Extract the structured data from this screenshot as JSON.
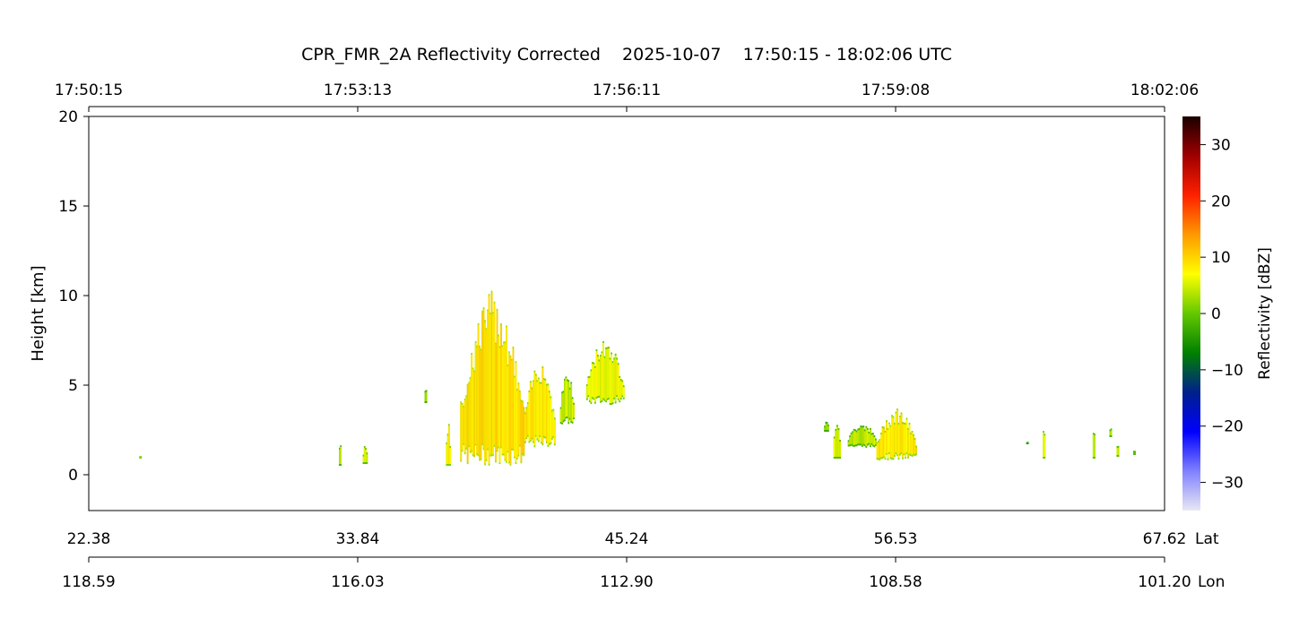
{
  "chart_data": {
    "type": "heatmap",
    "title": "CPR_FMR_2A Reflectivity Corrected    2025-10-07    17:50:15 - 18:02:06 UTC",
    "ylabel": "Height [km]",
    "ylim": [
      -2,
      20
    ],
    "yticks": [
      0,
      5,
      10,
      15,
      20
    ],
    "top_axis_time_ticks": [
      "17:50:15",
      "17:53:13",
      "17:56:11",
      "17:59:08",
      "18:02:06"
    ],
    "lat_ticks": [
      "22.38",
      "33.84",
      "45.24",
      "56.53",
      "67.62"
    ],
    "lat_label": "Lat",
    "lon_ticks": [
      "118.59",
      "116.03",
      "112.90",
      "108.58",
      "101.20"
    ],
    "lon_label": "Lon",
    "grid": false,
    "colorbar": {
      "label": "Reflectivity [dBZ]",
      "range": [
        -35,
        35
      ],
      "ticks": [
        30,
        20,
        10,
        0,
        -10,
        -20,
        -30
      ],
      "colors": [
        "#e8e8f4",
        "#8080ff",
        "#0000ff",
        "#00208c",
        "#008000",
        "#64c800",
        "#ffff00",
        "#ff9900",
        "#ff2000",
        "#a00000",
        "#1a0000"
      ]
    },
    "echo_regions": [
      {
        "lat_range": [
          24.5,
          24.6
        ],
        "height_range": [
          0.9,
          1.1
        ],
        "dbz": 8
      },
      {
        "lat_range": [
          32.9,
          33.0
        ],
        "height_range": [
          0.5,
          2.2
        ],
        "dbz": 5
      },
      {
        "lat_range": [
          33.9,
          34.1
        ],
        "height_range": [
          0.6,
          1.8
        ],
        "dbz": 6
      },
      {
        "lat_range": [
          36.5,
          36.6
        ],
        "height_range": [
          4.0,
          5.0
        ],
        "dbz": 4
      },
      {
        "lat_range": [
          37.4,
          37.6
        ],
        "height_range": [
          0.5,
          3.0
        ],
        "dbz": 8
      },
      {
        "lat_range": [
          38.0,
          40.7
        ],
        "height_range": [
          0.5,
          10.3
        ],
        "dbz": 10
      },
      {
        "lat_range": [
          40.7,
          42.0
        ],
        "height_range": [
          1.5,
          6.7
        ],
        "dbz": 9
      },
      {
        "lat_range": [
          42.2,
          42.8
        ],
        "height_range": [
          2.8,
          5.9
        ],
        "dbz": 5
      },
      {
        "lat_range": [
          43.3,
          44.9
        ],
        "height_range": [
          3.9,
          7.7
        ],
        "dbz": 7
      },
      {
        "lat_range": [
          53.3,
          53.5
        ],
        "height_range": [
          2.4,
          3.2
        ],
        "dbz": 4
      },
      {
        "lat_range": [
          53.7,
          54.0
        ],
        "height_range": [
          0.9,
          3.5
        ],
        "dbz": 6
      },
      {
        "lat_range": [
          54.3,
          55.5
        ],
        "height_range": [
          1.5,
          3.0
        ],
        "dbz": 5
      },
      {
        "lat_range": [
          55.5,
          57.2
        ],
        "height_range": [
          0.8,
          3.8
        ],
        "dbz": 9
      },
      {
        "lat_range": [
          61.8,
          61.9
        ],
        "height_range": [
          1.7,
          1.9
        ],
        "dbz": 3
      },
      {
        "lat_range": [
          62.5,
          62.6
        ],
        "height_range": [
          0.9,
          3.2
        ],
        "dbz": 7
      },
      {
        "lat_range": [
          64.6,
          64.7
        ],
        "height_range": [
          0.9,
          3.2
        ],
        "dbz": 6
      },
      {
        "lat_range": [
          65.3,
          65.4
        ],
        "height_range": [
          2.1,
          2.8
        ],
        "dbz": 5
      },
      {
        "lat_range": [
          65.6,
          65.7
        ],
        "height_range": [
          1.0,
          2.0
        ],
        "dbz": 6
      },
      {
        "lat_range": [
          66.3,
          66.4
        ],
        "height_range": [
          1.1,
          1.5
        ],
        "dbz": 6
      }
    ]
  }
}
